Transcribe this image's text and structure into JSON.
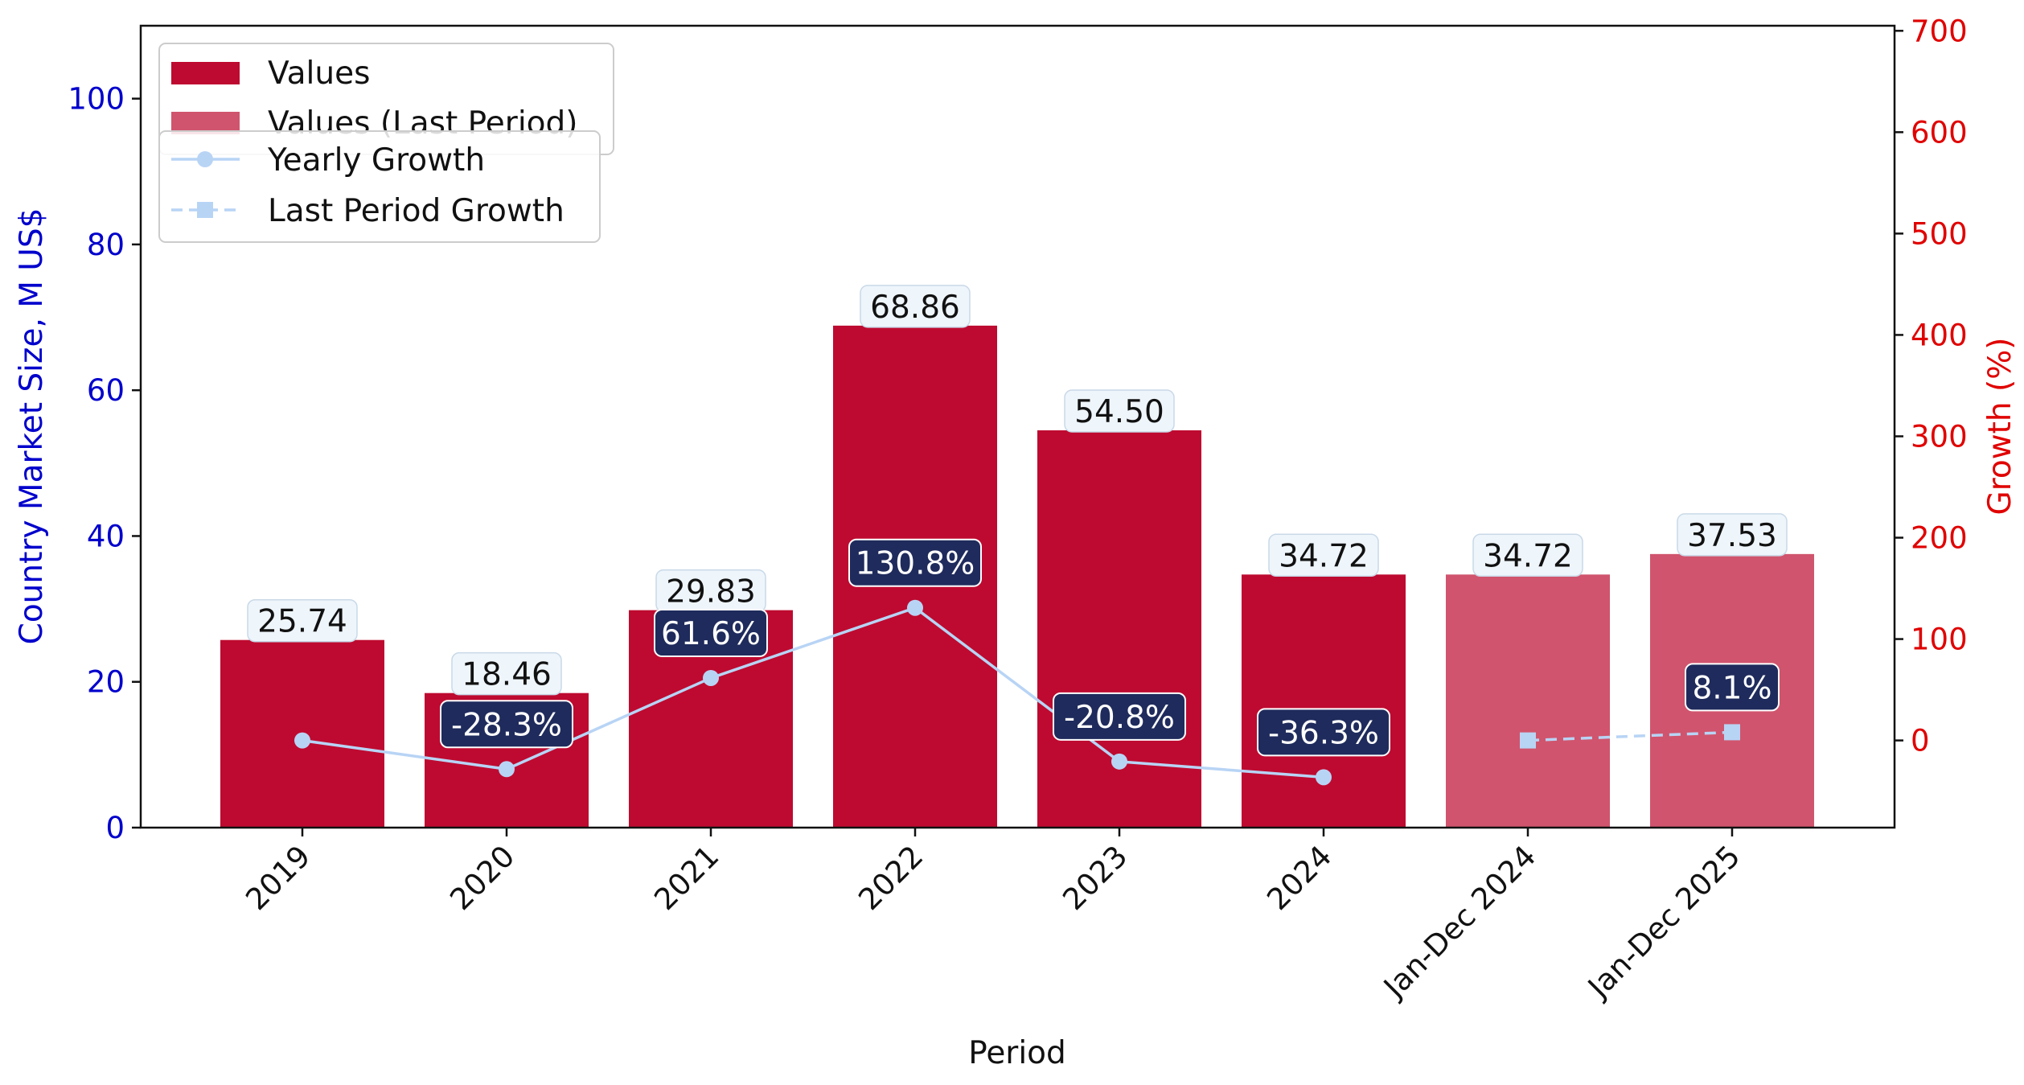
{
  "chart_data": {
    "type": "bar",
    "categories": [
      "2019",
      "2020",
      "2021",
      "2022",
      "2023",
      "2024",
      "Jan-Dec 2024",
      "Jan-Dec 2025"
    ],
    "series": [
      {
        "name": "Values",
        "kind": "bar",
        "axis": "left",
        "color": "#be0a30",
        "values": [
          25.74,
          18.46,
          29.83,
          68.86,
          54.5,
          34.72,
          null,
          null
        ],
        "labels": [
          "25.74",
          "18.46",
          "29.83",
          "68.86",
          "54.50",
          "34.72",
          "",
          ""
        ]
      },
      {
        "name": "Values (Last Period)",
        "kind": "bar",
        "axis": "left",
        "color": "#d0546d",
        "values": [
          null,
          null,
          null,
          null,
          null,
          null,
          34.72,
          37.53
        ],
        "labels": [
          "",
          "",
          "",
          "",
          "",
          "",
          "34.72",
          "37.53"
        ]
      },
      {
        "name": "Yearly Growth",
        "kind": "line",
        "axis": "right",
        "color": "#b8d4f5",
        "marker": "circle",
        "values": [
          0,
          -28.3,
          61.6,
          130.8,
          -20.8,
          -36.3,
          null,
          null
        ],
        "labels": [
          "",
          "-28.3%",
          "61.6%",
          "130.8%",
          "-20.8%",
          "-36.3%",
          "",
          ""
        ]
      },
      {
        "name": "Last Period Growth",
        "kind": "line",
        "axis": "right",
        "color": "#b8d4f5",
        "marker": "square",
        "dashed": true,
        "values": [
          null,
          null,
          null,
          null,
          null,
          null,
          0,
          8.1
        ],
        "labels": [
          "",
          "",
          "",
          "",
          "",
          "",
          "",
          "8.1%"
        ]
      }
    ],
    "xlabel": "Period",
    "ylabel": "Country Market Size, M US$",
    "y2label": "Growth (%)",
    "ylim": [
      0,
      110
    ],
    "y2lim": [
      -86,
      705
    ],
    "yticks": [
      0,
      20,
      40,
      60,
      80,
      100
    ],
    "y2ticks": [
      0,
      100,
      200,
      300,
      400,
      500,
      600,
      700
    ],
    "grid": false,
    "legend": "top-left",
    "colors": {
      "left_axis": "#0000cc",
      "right_axis": "#e00000",
      "label_box": "#1f2b5c",
      "value_box": "#eef5fb"
    }
  }
}
